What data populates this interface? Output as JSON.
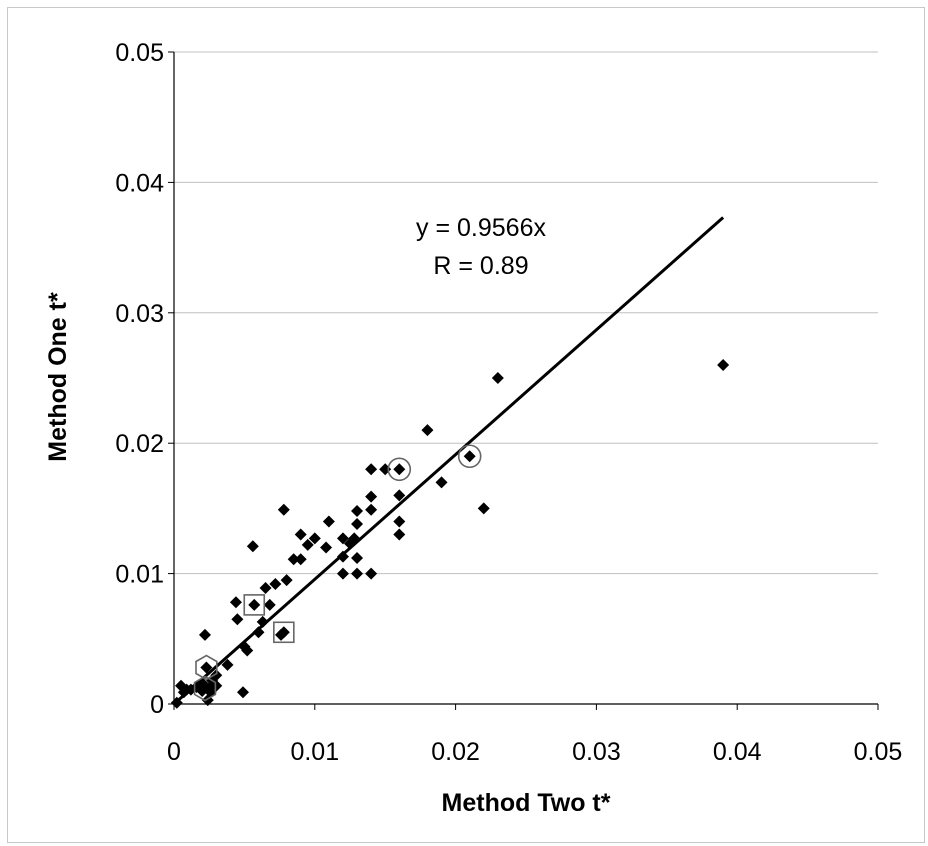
{
  "chart_data": {
    "type": "scatter",
    "title": "",
    "xlabel": "Method Two t*",
    "ylabel": "Method One t*",
    "xlim": [
      0,
      0.05
    ],
    "ylim": [
      0,
      0.05
    ],
    "x_ticks": [
      "0",
      "0.01",
      "0.02",
      "0.03",
      "0.04",
      "0.05"
    ],
    "y_ticks": [
      "0",
      "0.01",
      "0.02",
      "0.03",
      "0.04",
      "0.05"
    ],
    "grid": "horizontal",
    "legend": "none",
    "fit": {
      "slope": 0.9566,
      "x_range": [
        0,
        0.039
      ]
    },
    "annotation": {
      "equation": "y = 0.9566x",
      "r": "R = 0.89"
    },
    "series": [
      {
        "marker": "diamond",
        "color": "#000000",
        "points": [
          [
            0.0002,
            0.0001
          ],
          [
            0.0005,
            0.0014
          ],
          [
            0.0007,
            0.0009
          ],
          [
            0.0009,
            0.0011
          ],
          [
            0.0012,
            0.0011
          ],
          [
            0.0016,
            0.0013
          ],
          [
            0.002,
            0.001
          ],
          [
            0.0021,
            0.0015
          ],
          [
            0.0022,
            0.0053
          ],
          [
            0.0023,
            0.0028
          ],
          [
            0.0024,
            0.0003
          ],
          [
            0.0025,
            0.0012
          ],
          [
            0.0026,
            0.0009
          ],
          [
            0.0027,
            0.0018
          ],
          [
            0.003,
            0.0014
          ],
          [
            0.003,
            0.0022
          ],
          [
            0.0038,
            0.003
          ],
          [
            0.0044,
            0.0078
          ],
          [
            0.0045,
            0.0065
          ],
          [
            0.0049,
            0.0009
          ],
          [
            0.005,
            0.0044
          ],
          [
            0.0052,
            0.0041
          ],
          [
            0.0056,
            0.0121
          ],
          [
            0.0057,
            0.0076
          ],
          [
            0.006,
            0.0055
          ],
          [
            0.0063,
            0.0063
          ],
          [
            0.0065,
            0.0089
          ],
          [
            0.0068,
            0.0076
          ],
          [
            0.0072,
            0.0092
          ],
          [
            0.0076,
            0.0053
          ],
          [
            0.0078,
            0.0055
          ],
          [
            0.0078,
            0.0149
          ],
          [
            0.008,
            0.0095
          ],
          [
            0.0085,
            0.0111
          ],
          [
            0.009,
            0.0111
          ],
          [
            0.009,
            0.013
          ],
          [
            0.0095,
            0.0122
          ],
          [
            0.01,
            0.0127
          ],
          [
            0.0108,
            0.012
          ],
          [
            0.011,
            0.014
          ],
          [
            0.012,
            0.0127
          ],
          [
            0.012,
            0.0113
          ],
          [
            0.012,
            0.01
          ],
          [
            0.0125,
            0.0123
          ],
          [
            0.0128,
            0.0127
          ],
          [
            0.013,
            0.0148
          ],
          [
            0.013,
            0.0138
          ],
          [
            0.013,
            0.0112
          ],
          [
            0.013,
            0.01
          ],
          [
            0.014,
            0.0159
          ],
          [
            0.014,
            0.0149
          ],
          [
            0.014,
            0.01
          ],
          [
            0.014,
            0.018
          ],
          [
            0.015,
            0.018
          ],
          [
            0.016,
            0.018
          ],
          [
            0.016,
            0.016
          ],
          [
            0.016,
            0.014
          ],
          [
            0.016,
            0.013
          ],
          [
            0.018,
            0.021
          ],
          [
            0.019,
            0.017
          ],
          [
            0.021,
            0.019
          ],
          [
            0.022,
            0.015
          ],
          [
            0.023,
            0.025
          ],
          [
            0.039,
            0.026
          ]
        ]
      }
    ],
    "highlight_circles": [
      [
        0.016,
        0.018
      ],
      [
        0.021,
        0.019
      ]
    ],
    "highlight_squares": [
      [
        0.0057,
        0.0076
      ],
      [
        0.0078,
        0.0055
      ]
    ],
    "highlight_hexagons": [
      [
        0.0023,
        0.0028
      ],
      [
        0.0022,
        0.0012
      ]
    ]
  }
}
